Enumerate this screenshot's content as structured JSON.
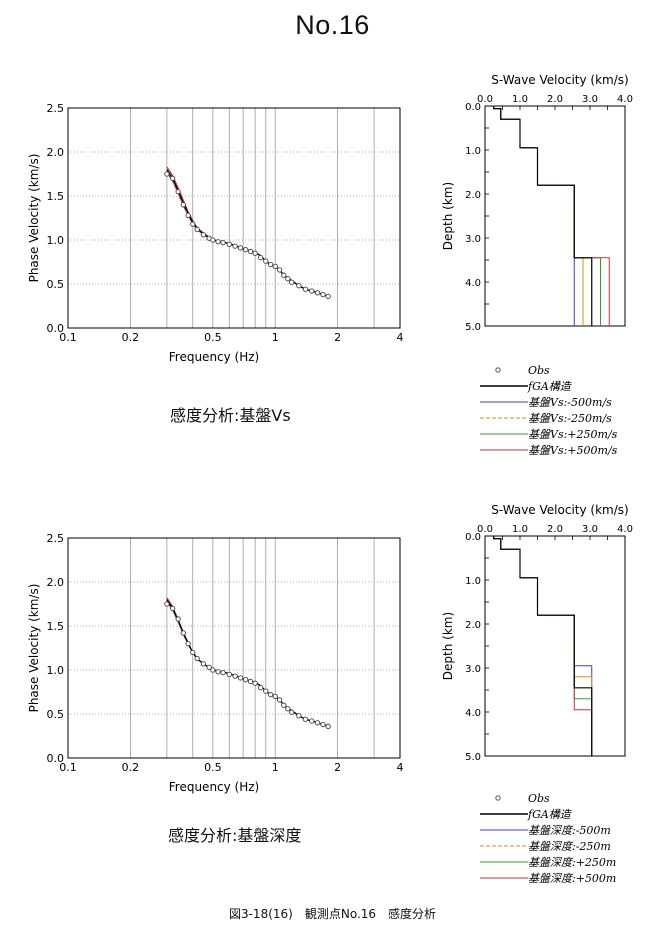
{
  "page": {
    "title": "No.16",
    "footer": "図3-18(16)　観測点No.16　感度分析",
    "sections": [
      {
        "caption": "感度分析:基盤Vs"
      },
      {
        "caption": "感度分析:基盤深度"
      }
    ]
  },
  "colors": {
    "obs": "#444444",
    "fga": "#000000",
    "m500": "#4040c0",
    "m250": "#e08a20",
    "p250": "#30a030",
    "p500": "#d03030",
    "grid": "#9a9a9a"
  },
  "chart_data": [
    {
      "type": "scatter",
      "xlabel": "Frequency (Hz)",
      "ylabel": "Phase Velocity (km/s)",
      "xscale": "log",
      "xlim": [
        0.1,
        4
      ],
      "ylim": [
        0,
        2.5
      ],
      "xticks": [
        "0.1",
        "0.2",
        "0.5",
        "1",
        "2",
        "4"
      ],
      "yticks": [
        "0.0",
        "0.5",
        "1.0",
        "1.5",
        "2.0",
        "2.5"
      ],
      "grid": true,
      "observed": {
        "x": [
          0.3,
          0.32,
          0.34,
          0.36,
          0.38,
          0.4,
          0.42,
          0.45,
          0.48,
          0.5,
          0.53,
          0.56,
          0.6,
          0.64,
          0.68,
          0.72,
          0.76,
          0.8,
          0.85,
          0.9,
          0.95,
          1.0,
          1.05,
          1.1,
          1.15,
          1.2,
          1.3,
          1.4,
          1.5,
          1.6,
          1.7,
          1.8
        ],
        "y": [
          1.75,
          1.7,
          1.55,
          1.4,
          1.28,
          1.18,
          1.12,
          1.06,
          1.02,
          1.0,
          0.98,
          0.97,
          0.95,
          0.93,
          0.91,
          0.89,
          0.87,
          0.85,
          0.8,
          0.76,
          0.72,
          0.7,
          0.66,
          0.6,
          0.56,
          0.52,
          0.48,
          0.44,
          0.42,
          0.4,
          0.38,
          0.36
        ]
      },
      "theory_x": [
        0.3,
        0.32,
        0.34,
        0.36,
        0.38,
        0.4,
        0.42,
        0.45,
        0.48,
        0.5,
        0.55,
        0.6,
        0.65,
        0.7,
        0.75,
        0.8,
        0.85,
        0.9,
        0.95,
        1.0,
        1.05,
        1.1,
        1.2,
        1.3,
        1.4,
        1.5,
        1.6,
        1.7,
        1.8
      ],
      "fga_y": [
        1.8,
        1.7,
        1.56,
        1.42,
        1.3,
        1.2,
        1.13,
        1.07,
        1.03,
        1.0,
        0.98,
        0.96,
        0.93,
        0.9,
        0.88,
        0.86,
        0.82,
        0.76,
        0.72,
        0.7,
        0.66,
        0.6,
        0.54,
        0.48,
        0.44,
        0.42,
        0.4,
        0.38,
        0.36
      ],
      "variant_low_y": [
        1.77,
        1.67,
        1.53,
        1.39,
        1.28,
        1.18,
        1.12,
        1.06,
        1.02,
        1.0,
        0.98,
        0.96,
        0.93,
        0.9,
        0.88,
        0.86,
        0.82,
        0.76,
        0.72,
        0.7,
        0.66,
        0.6,
        0.54,
        0.48,
        0.44,
        0.42,
        0.4,
        0.38,
        0.36
      ],
      "variant_high_y": [
        1.83,
        1.73,
        1.59,
        1.45,
        1.32,
        1.22,
        1.14,
        1.08,
        1.03,
        1.0,
        0.98,
        0.96,
        0.93,
        0.9,
        0.88,
        0.86,
        0.82,
        0.76,
        0.72,
        0.7,
        0.66,
        0.6,
        0.54,
        0.48,
        0.44,
        0.42,
        0.4,
        0.38,
        0.36
      ]
    },
    {
      "type": "line",
      "title": "S-Wave Velocity (km/s)",
      "ylabel": "Depth (km)",
      "xlim": [
        0,
        4
      ],
      "ylim": [
        0,
        5
      ],
      "xticks": [
        "0.0",
        "1.0",
        "2.0",
        "3.0",
        "4.0"
      ],
      "yticks": [
        "0.0",
        "1.0",
        "2.0",
        "3.0",
        "4.0",
        "5.0"
      ],
      "layers": {
        "vs": [
          0.25,
          0.45,
          1.0,
          1.5,
          2.55
        ],
        "bottom": [
          0.06,
          0.3,
          0.95,
          1.8,
          3.45
        ]
      },
      "basement_vs": {
        "fga": 3.05,
        "m500": 2.55,
        "m250": 2.8,
        "p250": 3.3,
        "p500": 3.55
      },
      "legend": [
        "Obs",
        "fGA構造",
        "基盤Vs:-500m/s",
        "基盤Vs:-250m/s",
        "基盤Vs:+250m/s",
        "基盤Vs:+500m/s"
      ]
    },
    {
      "type": "scatter",
      "xlabel": "Frequency (Hz)",
      "ylabel": "Phase Velocity (km/s)",
      "xscale": "log",
      "xlim": [
        0.1,
        4
      ],
      "ylim": [
        0,
        2.5
      ],
      "xticks": [
        "0.1",
        "0.2",
        "0.5",
        "1",
        "2",
        "4"
      ],
      "yticks": [
        "0.0",
        "0.5",
        "1.0",
        "1.5",
        "2.0",
        "2.5"
      ],
      "grid": true,
      "observed": {
        "x": [
          0.3,
          0.32,
          0.34,
          0.36,
          0.38,
          0.4,
          0.42,
          0.45,
          0.48,
          0.5,
          0.53,
          0.56,
          0.6,
          0.64,
          0.68,
          0.72,
          0.76,
          0.8,
          0.85,
          0.9,
          0.95,
          1.0,
          1.05,
          1.1,
          1.15,
          1.2,
          1.3,
          1.4,
          1.5,
          1.6,
          1.7,
          1.8
        ],
        "y": [
          1.75,
          1.7,
          1.58,
          1.42,
          1.3,
          1.2,
          1.13,
          1.07,
          1.03,
          1.0,
          0.98,
          0.97,
          0.95,
          0.93,
          0.91,
          0.89,
          0.87,
          0.85,
          0.8,
          0.76,
          0.72,
          0.7,
          0.66,
          0.6,
          0.56,
          0.52,
          0.48,
          0.44,
          0.42,
          0.4,
          0.38,
          0.36
        ]
      },
      "theory_x": [
        0.3,
        0.32,
        0.34,
        0.36,
        0.38,
        0.4,
        0.42,
        0.45,
        0.48,
        0.5,
        0.55,
        0.6,
        0.65,
        0.7,
        0.75,
        0.8,
        0.85,
        0.9,
        0.95,
        1.0,
        1.05,
        1.1,
        1.2,
        1.3,
        1.4,
        1.5,
        1.6,
        1.7,
        1.8
      ],
      "fga_y": [
        1.8,
        1.7,
        1.56,
        1.42,
        1.3,
        1.2,
        1.13,
        1.07,
        1.03,
        1.0,
        0.98,
        0.96,
        0.93,
        0.9,
        0.88,
        0.86,
        0.82,
        0.76,
        0.72,
        0.7,
        0.66,
        0.6,
        0.54,
        0.48,
        0.44,
        0.42,
        0.4,
        0.38,
        0.36
      ],
      "variant_low_y": [
        1.78,
        1.68,
        1.55,
        1.41,
        1.29,
        1.2,
        1.13,
        1.07,
        1.03,
        1.0,
        0.98,
        0.96,
        0.93,
        0.9,
        0.88,
        0.86,
        0.82,
        0.76,
        0.72,
        0.7,
        0.66,
        0.6,
        0.54,
        0.48,
        0.44,
        0.42,
        0.4,
        0.38,
        0.36
      ],
      "variant_high_y": [
        1.82,
        1.72,
        1.57,
        1.43,
        1.31,
        1.2,
        1.13,
        1.07,
        1.03,
        1.0,
        0.98,
        0.96,
        0.93,
        0.9,
        0.88,
        0.86,
        0.82,
        0.76,
        0.72,
        0.7,
        0.66,
        0.6,
        0.54,
        0.48,
        0.44,
        0.42,
        0.4,
        0.38,
        0.36
      ]
    },
    {
      "type": "line",
      "title": "S-Wave Velocity (km/s)",
      "ylabel": "Depth (km)",
      "xlim": [
        0,
        4
      ],
      "ylim": [
        0,
        5
      ],
      "xticks": [
        "0.0",
        "1.0",
        "2.0",
        "3.0",
        "4.0"
      ],
      "yticks": [
        "0.0",
        "1.0",
        "2.0",
        "3.0",
        "4.0",
        "5.0"
      ],
      "layers": {
        "vs": [
          0.25,
          0.45,
          1.0,
          1.5,
          2.55
        ],
        "bottom": [
          0.06,
          0.3,
          0.95,
          1.8,
          3.45
        ]
      },
      "basement_vs": 3.05,
      "basement_depth": {
        "fga": 3.45,
        "m500": 2.95,
        "m250": 3.2,
        "p250": 3.7,
        "p500": 3.95
      },
      "legend": [
        "Obs",
        "fGA構造",
        "基盤深度:-500m",
        "基盤深度:-250m",
        "基盤深度:+250m",
        "基盤深度:+500m"
      ]
    }
  ]
}
